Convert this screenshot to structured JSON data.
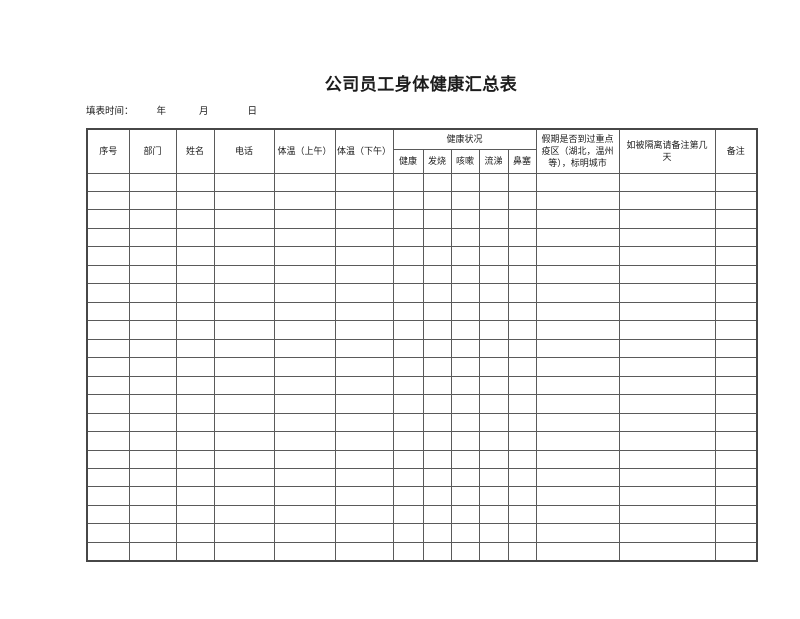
{
  "document": {
    "title": "公司员工身体健康汇总表",
    "form_time": {
      "label": "填表时间：",
      "year": "年",
      "month": "月",
      "day": "日"
    }
  },
  "table": {
    "header": {
      "cols": [
        {
          "label": "序号"
        },
        {
          "label": "部门"
        },
        {
          "label": "姓名"
        },
        {
          "label": "电话"
        },
        {
          "label": "体温（上午）"
        },
        {
          "label": "体温（下午）"
        },
        {
          "label": "假期是否到过重点疫区（湖北，温州等），标明城市"
        },
        {
          "label": "如被隔离请备注第几天"
        },
        {
          "label": "备注"
        }
      ],
      "group": {
        "label": "健康状况",
        "subcols": [
          {
            "label": "健康"
          },
          {
            "label": "发烧"
          },
          {
            "label": "咳嗽"
          },
          {
            "label": "流涕"
          },
          {
            "label": "鼻塞"
          }
        ]
      }
    },
    "body": {
      "empty_row_count": 21,
      "columns_per_row": 14
    }
  },
  "colors": {
    "background": "#ffffff",
    "text": "#1c1c1c",
    "inner_border": "#5a5a5a",
    "outer_border": "#474747"
  }
}
